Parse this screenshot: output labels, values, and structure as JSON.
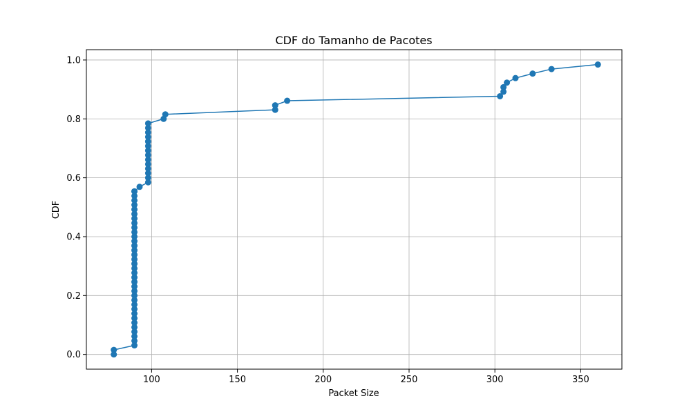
{
  "chart_data": {
    "type": "line",
    "title": "CDF do Tamanho de Pacotes",
    "xlabel": "Packet Size",
    "ylabel": "CDF",
    "xlim": [
      62,
      374
    ],
    "ylim": [
      -0.05,
      1.035
    ],
    "grid": true,
    "x_ticks": [
      100,
      150,
      200,
      250,
      300,
      350
    ],
    "x_tick_labels": [
      "100",
      "150",
      "200",
      "250",
      "300",
      "350"
    ],
    "y_ticks": [
      0.0,
      0.2,
      0.4,
      0.6,
      0.8,
      1.0
    ],
    "y_tick_labels": [
      "0.0",
      "0.2",
      "0.4",
      "0.6",
      "0.8",
      "1.0"
    ],
    "series_color": "#1f77b4",
    "marker": "circle",
    "series": [
      {
        "x": [
          78,
          78,
          90,
          90,
          90,
          90,
          90,
          90,
          90,
          90,
          90,
          90,
          90,
          90,
          90,
          90,
          90,
          90,
          90,
          90,
          90,
          90,
          90,
          90,
          90,
          90,
          90,
          90,
          90,
          90,
          90,
          90,
          90,
          90,
          90,
          90,
          90,
          90,
          93,
          98,
          98,
          98,
          98,
          98,
          98,
          98,
          98,
          98,
          98,
          98,
          98,
          98,
          98,
          107,
          108,
          172,
          172,
          179,
          303,
          305,
          305,
          307,
          312,
          322,
          333,
          360
        ],
        "y": [
          0.0,
          0.0154,
          0.0308,
          0.0462,
          0.0615,
          0.0769,
          0.0923,
          0.1077,
          0.1231,
          0.1385,
          0.1538,
          0.1692,
          0.1846,
          0.2,
          0.2154,
          0.2308,
          0.2462,
          0.2615,
          0.2769,
          0.2923,
          0.3077,
          0.3231,
          0.3385,
          0.3538,
          0.3692,
          0.3846,
          0.4,
          0.4154,
          0.4308,
          0.4462,
          0.4615,
          0.4769,
          0.4923,
          0.5077,
          0.5231,
          0.5385,
          0.5538,
          0.5538,
          0.5692,
          0.5846,
          0.6,
          0.6154,
          0.6308,
          0.6462,
          0.6615,
          0.6769,
          0.6923,
          0.7077,
          0.7231,
          0.7385,
          0.7538,
          0.7692,
          0.7846,
          0.8,
          0.8154,
          0.8308,
          0.8462,
          0.8615,
          0.8769,
          0.8923,
          0.9077,
          0.9231,
          0.9385,
          0.9538,
          0.9692,
          0.9846
        ]
      }
    ]
  }
}
